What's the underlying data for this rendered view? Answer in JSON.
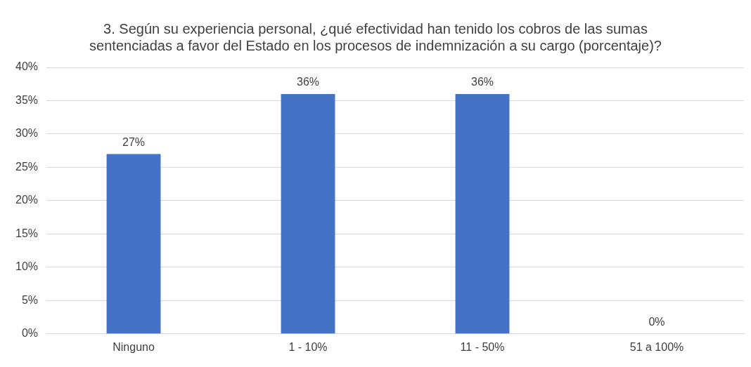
{
  "chart_data": {
    "type": "bar",
    "title": "3. Según su experiencia personal, ¿qué efectividad han tenido los cobros de las sumas sentenciadas a favor del Estado en los procesos de indemnización a su cargo (porcentaje)?",
    "categories": [
      "Ninguno",
      "1 - 10%",
      "11 - 50%",
      "51 a 100%"
    ],
    "values": [
      27,
      36,
      36,
      0
    ],
    "value_labels": [
      "27%",
      "36%",
      "36%",
      "0%"
    ],
    "color": "#4472c4",
    "ylim": [
      0,
      40
    ],
    "yticks": [
      {
        "value": 0,
        "label": "0%"
      },
      {
        "value": 5,
        "label": "5%"
      },
      {
        "value": 10,
        "label": "10%"
      },
      {
        "value": 15,
        "label": "15%"
      },
      {
        "value": 20,
        "label": "20%"
      },
      {
        "value": 25,
        "label": "25%"
      },
      {
        "value": 30,
        "label": "30%"
      },
      {
        "value": 35,
        "label": "35%"
      },
      {
        "value": 40,
        "label": "40%"
      }
    ],
    "grid": "y",
    "legend": false
  }
}
